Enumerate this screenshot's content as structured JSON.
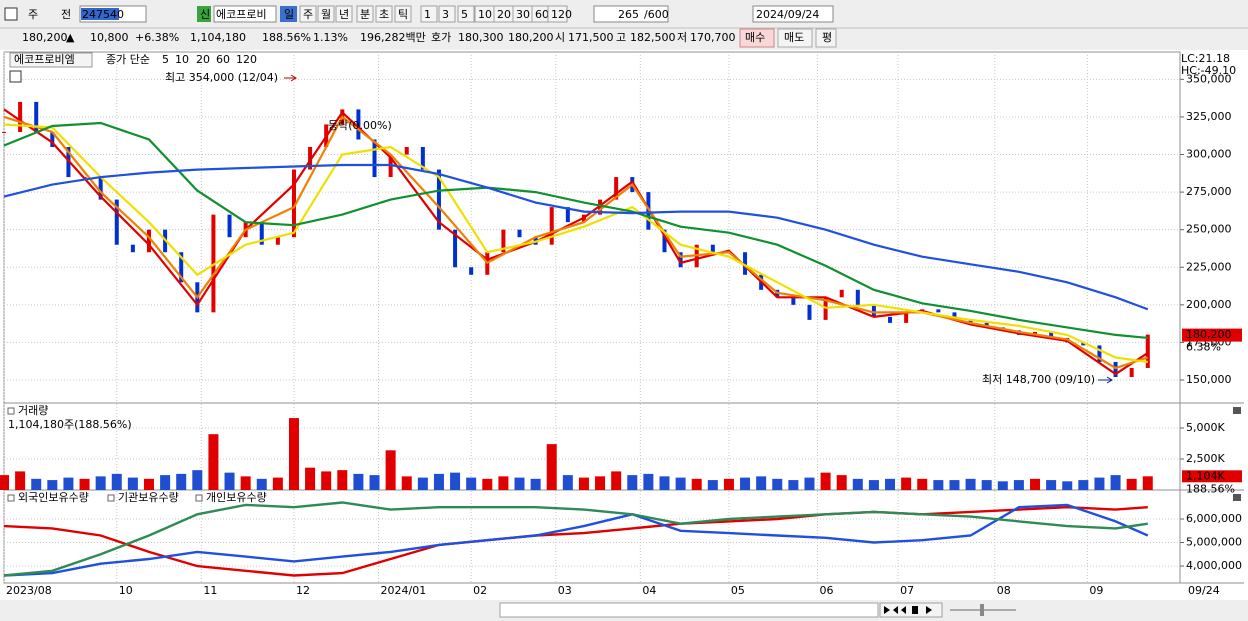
{
  "toolbar": {
    "row1": [
      "주",
      "전",
      "247540",
      "신",
      "에코프로비",
      "일",
      "주",
      "월",
      "년",
      "분",
      "초",
      "틱",
      "1",
      "3",
      "5",
      "10",
      "20",
      "30",
      "60",
      "120",
      "265",
      "/600",
      "2024/09/24"
    ],
    "row2": [
      "180,200",
      "▲",
      "10,800",
      "+6.38%",
      "1,104,180",
      "188.56%",
      "1.13%",
      "196,282백만",
      "호가",
      "180,300",
      "180,200",
      "시",
      "171,500",
      "고",
      "182,500",
      "저",
      "170,700",
      "매수",
      "매도",
      "평"
    ]
  },
  "chart_data": [
    {
      "type": "stock",
      "name": "에코프로비엠",
      "legend_title": "종가 단순",
      "lc": "LC:21.18",
      "hc": "HC:-49.10",
      "annotations": [
        "최고 354,000 (12/04)",
        "최저 148,700 (09/10)",
        "등락(0.00%)"
      ],
      "last_value_label": "180,200",
      "last_change": "6.38%",
      "up_color": "#e00000",
      "down_color": "#0030d0",
      "xlim": [
        0,
        292
      ],
      "ylim": [
        134700,
        368200
      ],
      "yticks": [
        {
          "value": 150000,
          "label": "150,000"
        },
        {
          "value": 175000,
          "label": "175,000"
        },
        {
          "value": 200000,
          "label": "200,000"
        },
        {
          "value": 225000,
          "label": "225,000"
        },
        {
          "value": 250000,
          "label": "250,000"
        },
        {
          "value": 275000,
          "label": "275,000"
        },
        {
          "value": 300000,
          "label": "300,000"
        },
        {
          "value": 325000,
          "label": "325,000"
        },
        {
          "value": 350000,
          "label": "350,000"
        }
      ],
      "grid": true,
      "x": [
        0,
        4,
        8,
        12,
        16,
        20,
        24,
        28,
        32,
        36,
        40,
        44,
        48,
        52,
        56,
        60,
        64,
        68,
        72,
        76,
        80,
        84,
        88,
        92,
        96,
        100,
        104,
        108,
        112,
        116,
        120,
        124,
        128,
        132,
        136,
        140,
        144,
        148,
        152,
        156,
        160,
        164,
        168,
        172,
        176,
        180,
        184,
        188,
        192,
        196,
        200,
        204,
        208,
        212,
        216,
        220,
        224,
        228,
        232,
        236,
        240,
        244,
        248,
        252,
        256,
        260,
        264,
        268,
        272,
        276,
        280,
        284
      ],
      "values": [
        315000,
        335000,
        315000,
        305000,
        285000,
        285000,
        270000,
        240000,
        235000,
        250000,
        235000,
        215000,
        195000,
        260000,
        245000,
        255000,
        240000,
        245000,
        290000,
        305000,
        320000,
        330000,
        310000,
        285000,
        300000,
        305000,
        290000,
        250000,
        225000,
        220000,
        235000,
        250000,
        245000,
        240000,
        265000,
        255000,
        260000,
        270000,
        285000,
        275000,
        250000,
        235000,
        225000,
        240000,
        235000,
        235000,
        220000,
        210000,
        205000,
        200000,
        190000,
        205000,
        210000,
        200000,
        192000,
        188000,
        195000,
        197000,
        195000,
        190000,
        188000,
        185000,
        183000,
        180000,
        182000,
        178000,
        175000,
        173000,
        162000,
        152000,
        158000,
        180200
      ],
      "series": [
        {
          "name": "5",
          "color": "#e00000",
          "x": [
            0,
            12,
            24,
            36,
            48,
            60,
            72,
            84,
            96,
            108,
            120,
            132,
            144,
            156,
            168,
            180,
            192,
            204,
            216,
            228,
            240,
            252,
            264,
            276,
            284
          ],
          "values": [
            330000,
            308000,
            272000,
            240000,
            200000,
            250000,
            280000,
            328000,
            298000,
            255000,
            230000,
            242000,
            258000,
            282000,
            228000,
            236000,
            205000,
            205000,
            192000,
            196000,
            187000,
            181000,
            176000,
            154000,
            168000
          ]
        },
        {
          "name": "10",
          "color": "#f08000",
          "x": [
            0,
            12,
            24,
            36,
            48,
            60,
            72,
            84,
            96,
            108,
            120,
            132,
            144,
            156,
            168,
            180,
            192,
            204,
            216,
            228,
            240,
            252,
            264,
            276,
            284
          ],
          "values": [
            325000,
            315000,
            275000,
            245000,
            205000,
            250000,
            265000,
            325000,
            300000,
            265000,
            228000,
            245000,
            255000,
            280000,
            232000,
            235000,
            208000,
            203000,
            195000,
            195000,
            188000,
            182000,
            177000,
            158000,
            165000
          ]
        },
        {
          "name": "20",
          "color": "#f0e000",
          "x": [
            0,
            12,
            24,
            36,
            48,
            60,
            72,
            84,
            96,
            108,
            120,
            132,
            144,
            156,
            168,
            180,
            192,
            204,
            216,
            228,
            240,
            252,
            264,
            276,
            284
          ],
          "values": [
            320000,
            318000,
            285000,
            255000,
            220000,
            240000,
            248000,
            300000,
            305000,
            285000,
            235000,
            242000,
            252000,
            265000,
            240000,
            232000,
            215000,
            198000,
            200000,
            195000,
            190000,
            186000,
            180000,
            165000,
            162000
          ]
        },
        {
          "name": "60",
          "color": "#119030",
          "x": [
            0,
            12,
            24,
            36,
            48,
            60,
            72,
            84,
            96,
            108,
            120,
            132,
            144,
            156,
            168,
            180,
            192,
            204,
            216,
            228,
            240,
            252,
            264,
            276,
            284
          ],
          "values": [
            306000,
            319000,
            321000,
            310000,
            276000,
            255000,
            253000,
            260000,
            270000,
            276000,
            278000,
            275000,
            268000,
            262000,
            252000,
            248000,
            240000,
            226000,
            210000,
            201000,
            196000,
            190000,
            185000,
            180000,
            178000
          ]
        },
        {
          "name": "120",
          "color": "#2050e0",
          "x": [
            0,
            12,
            24,
            36,
            48,
            60,
            72,
            84,
            96,
            108,
            120,
            132,
            144,
            156,
            168,
            180,
            192,
            204,
            216,
            228,
            240,
            252,
            264,
            276,
            284
          ],
          "values": [
            272000,
            280000,
            285000,
            288000,
            290000,
            291000,
            292000,
            293000,
            293000,
            287000,
            278000,
            268000,
            262000,
            261000,
            262000,
            262000,
            258000,
            250000,
            240000,
            232000,
            227000,
            222000,
            215000,
            205000,
            197000
          ]
        }
      ]
    },
    {
      "type": "bar",
      "title": "거래량",
      "subtitle": "1,104,180주(188.56%)",
      "last_value_label": "1,104K",
      "last_change": "188.56%",
      "xlim": [
        0,
        292
      ],
      "ylim": [
        0,
        6935
      ],
      "yticks": [
        {
          "value": 2500,
          "label": "2,500K"
        },
        {
          "value": 5000,
          "label": "5,000K"
        }
      ],
      "x": [
        0,
        4,
        8,
        12,
        16,
        20,
        24,
        28,
        32,
        36,
        40,
        44,
        48,
        52,
        56,
        60,
        64,
        68,
        72,
        76,
        80,
        84,
        88,
        92,
        96,
        100,
        104,
        108,
        112,
        116,
        120,
        124,
        128,
        132,
        136,
        140,
        144,
        148,
        152,
        156,
        160,
        164,
        168,
        172,
        176,
        180,
        184,
        188,
        192,
        196,
        200,
        204,
        208,
        212,
        216,
        220,
        224,
        228,
        232,
        236,
        240,
        244,
        248,
        252,
        256,
        260,
        264,
        268,
        272,
        276,
        280,
        284
      ],
      "values": [
        1200,
        1500,
        900,
        800,
        1000,
        900,
        1100,
        1300,
        1000,
        900,
        1200,
        1300,
        1600,
        4500,
        1400,
        1100,
        900,
        1000,
        5800,
        1800,
        1500,
        1600,
        1300,
        1200,
        3200,
        1100,
        1000,
        1300,
        1400,
        1000,
        900,
        1100,
        1000,
        900,
        3700,
        1200,
        1000,
        1100,
        1500,
        1200,
        1300,
        1100,
        1000,
        900,
        800,
        900,
        1000,
        1100,
        900,
        800,
        1000,
        1400,
        1200,
        900,
        800,
        900,
        1000,
        900,
        800,
        800,
        900,
        800,
        700,
        800,
        900,
        800,
        700,
        800,
        1000,
        1200,
        900,
        1104.18
      ]
    },
    {
      "type": "line",
      "xlim": [
        0,
        292
      ],
      "ylim": [
        3280000,
        7190000
      ],
      "yticks": [
        {
          "value": 4000000,
          "label": "4,000,000"
        },
        {
          "value": 5000000,
          "label": "5,000,000"
        },
        {
          "value": 6000000,
          "label": "6,000,000"
        }
      ],
      "xticks": [
        {
          "value": 0,
          "label": "2023/08"
        },
        {
          "value": 28,
          "label": "10"
        },
        {
          "value": 49,
          "label": "11"
        },
        {
          "value": 72,
          "label": "12"
        },
        {
          "value": 93,
          "label": "2024/01"
        },
        {
          "value": 116,
          "label": "02"
        },
        {
          "value": 137,
          "label": "03"
        },
        {
          "value": 158,
          "label": "04"
        },
        {
          "value": 180,
          "label": "05"
        },
        {
          "value": 202,
          "label": "06"
        },
        {
          "value": 222,
          "label": "07"
        },
        {
          "value": 246,
          "label": "08"
        },
        {
          "value": 269,
          "label": "09"
        }
      ],
      "x_end_label": "09/24",
      "series": [
        {
          "name": "외국인보유수량",
          "color": "#e00000",
          "x": [
            0,
            12,
            24,
            36,
            48,
            60,
            72,
            84,
            96,
            108,
            120,
            132,
            144,
            156,
            168,
            180,
            192,
            204,
            216,
            228,
            240,
            252,
            264,
            276,
            284
          ],
          "values": [
            5700000,
            5600000,
            5300000,
            4600000,
            4000000,
            3800000,
            3600000,
            3700000,
            4300000,
            4900000,
            5100000,
            5300000,
            5400000,
            5600000,
            5800000,
            5900000,
            6000000,
            6200000,
            6300000,
            6200000,
            6300000,
            6400000,
            6500000,
            6400000,
            6500000
          ]
        },
        {
          "name": "기관보유수량",
          "color": "#2050e0",
          "x": [
            0,
            12,
            24,
            36,
            48,
            60,
            72,
            84,
            96,
            108,
            120,
            132,
            144,
            156,
            168,
            180,
            192,
            204,
            216,
            228,
            240,
            252,
            264,
            276,
            284
          ],
          "values": [
            3600000,
            3700000,
            4100000,
            4300000,
            4600000,
            4400000,
            4200000,
            4400000,
            4600000,
            4900000,
            5100000,
            5300000,
            5700000,
            6200000,
            5500000,
            5400000,
            5300000,
            5200000,
            5000000,
            5100000,
            5300000,
            6500000,
            6600000,
            5900000,
            5300000
          ]
        },
        {
          "name": "개인보유수량",
          "color": "#2e8b57",
          "x": [
            0,
            12,
            24,
            36,
            48,
            60,
            72,
            84,
            96,
            108,
            120,
            132,
            144,
            156,
            168,
            180,
            192,
            204,
            216,
            228,
            240,
            252,
            264,
            276,
            284
          ],
          "values": [
            3600000,
            3800000,
            4500000,
            5300000,
            6200000,
            6600000,
            6500000,
            6700000,
            6400000,
            6500000,
            6500000,
            6500000,
            6400000,
            6200000,
            5800000,
            6000000,
            6100000,
            6200000,
            6300000,
            6200000,
            6100000,
            5900000,
            5700000,
            5600000,
            5800000
          ]
        }
      ]
    }
  ]
}
